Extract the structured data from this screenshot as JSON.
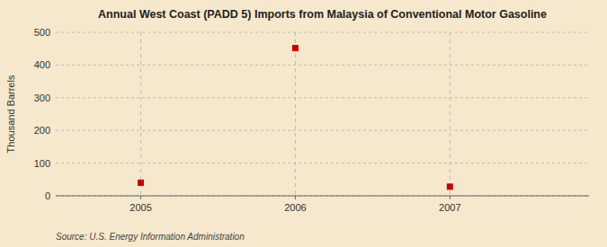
{
  "chart_data": {
    "type": "scatter",
    "title": "Annual West Coast (PADD 5) Imports from Malaysia of Conventional Motor Gasoline",
    "ylabel": "Thousand Barrels",
    "annotation": "Source: U.S. Energy Information Administration",
    "x": [
      2005,
      2006,
      2007
    ],
    "values": [
      40,
      452,
      28
    ],
    "xlim": [
      2004.45,
      2007.9
    ],
    "xticks": [
      2005,
      2006,
      2007
    ],
    "ylim": [
      0,
      500
    ],
    "yticks": [
      0,
      100,
      200,
      300,
      400,
      500
    ],
    "color": "#cc0000",
    "marker": "square",
    "grid": true
  }
}
